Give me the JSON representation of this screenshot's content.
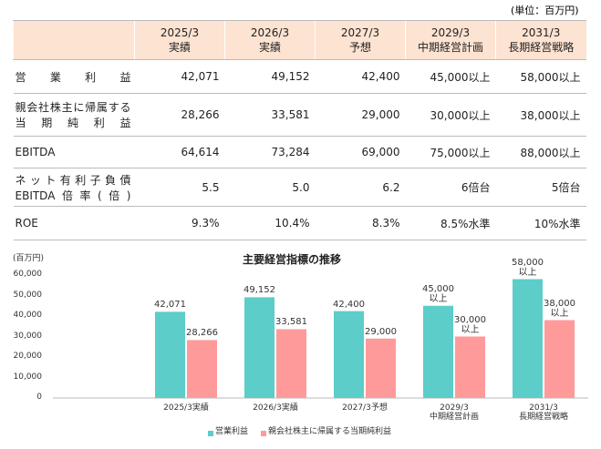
{
  "table": {
    "unit": "(単位：百万円)",
    "header": [
      [
        "2025/3",
        "実績"
      ],
      [
        "2026/3",
        "実績"
      ],
      [
        "2027/3",
        "予想"
      ],
      [
        "2029/3",
        "中期経営計画"
      ],
      [
        "2031/3",
        "長期経営戦略"
      ]
    ],
    "rows": [
      {
        "label": [
          "営業利益"
        ],
        "cells": [
          "42,071",
          "49,152",
          "42,400",
          "45,000以上",
          "58,000以上"
        ]
      },
      {
        "label": [
          "親会社株主に帰属する",
          "当期純利益"
        ],
        "cells": [
          "28,266",
          "33,581",
          "29,000",
          "30,000以上",
          "38,000以上"
        ]
      },
      {
        "label": [
          "EBITDA"
        ],
        "cells": [
          "64,614",
          "73,284",
          "69,000",
          "75,000以上",
          "88,000以上"
        ]
      },
      {
        "label": [
          "ネット有利子負債",
          "EBITDA倍率(倍)"
        ],
        "cells": [
          "5.5",
          "5.0",
          "6.2",
          "6倍台",
          "5倍台"
        ]
      },
      {
        "label": [
          "ROE"
        ],
        "cells": [
          "9.3%",
          "10.4%",
          "8.3%",
          "8.5%水準",
          "10%水準"
        ]
      }
    ]
  },
  "chart_data": {
    "type": "bar",
    "title": "主要経営指標の推移",
    "y_label": "(百万円)",
    "categories": [
      "2025/3実績",
      "2026/3実績",
      "2027/3予想",
      "2029/3\n中期経営計画",
      "2031/3\n長期経営戦略"
    ],
    "series": [
      {
        "name": "営業利益",
        "color": "#5ccdc9",
        "values": [
          42071,
          49152,
          42400,
          45000,
          58000
        ],
        "value_labels": [
          "42,071",
          "49,152",
          "42,400",
          "45,000\n以上",
          "58,000\n以上"
        ]
      },
      {
        "name": "親会社株主に帰属する当期純利益",
        "color": "#ff9a9a",
        "values": [
          28266,
          33581,
          29000,
          30000,
          38000
        ],
        "value_labels": [
          "28,266",
          "33,581",
          "29,000",
          "30,000\n以上",
          "38,000\n以上"
        ]
      }
    ],
    "ylim": [
      0,
      60000
    ],
    "yticks": [
      0,
      {
        "value": 10000,
        "label": "10,000"
      },
      {
        "value": 20000,
        "label": "20,000"
      },
      {
        "value": 30000,
        "label": "30,000"
      },
      {
        "value": 40000,
        "label": "40,000"
      },
      {
        "value": 50000,
        "label": "50,000"
      },
      {
        "value": 60000,
        "label": "60,000"
      }
    ],
    "grid": false
  }
}
